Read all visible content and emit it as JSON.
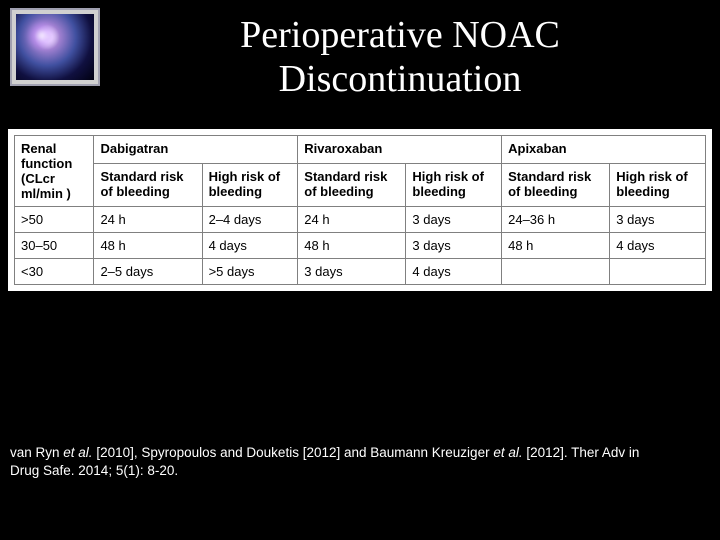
{
  "title_line1": "Perioperative NOAC",
  "title_line2": "Discontinuation",
  "table": {
    "col_renal_l1": "Renal function",
    "col_renal_l2": "(CLcr ml/min )",
    "drugs": [
      "Dabigatran",
      "Rivaroxaban",
      "Apixaban"
    ],
    "sub_std": "Standard risk of bleeding",
    "sub_high": "High risk of bleeding",
    "rows": [
      {
        "renal": ">50",
        "cells": [
          "24 h",
          "2–4 days",
          "24 h",
          "3 days",
          "24–36 h",
          "3 days"
        ]
      },
      {
        "renal": "30–50",
        "cells": [
          "48 h",
          "4 days",
          "48 h",
          "3 days",
          "48 h",
          "4 days"
        ]
      },
      {
        "renal": "<30",
        "cells": [
          "2–5 days",
          ">5 days",
          "3 days",
          "4 days",
          "",
          ""
        ]
      }
    ]
  },
  "citation": {
    "p1a": "van Ryn ",
    "p1b": "et al.",
    "p1c": " [2010], Spyropoulos and Douketis [2012] and Baumann Kreuziger ",
    "p1d": "et al.",
    "p1e": " [2012]. Ther Adv in",
    "p2": "Drug Safe. 2014; 5(1): 8-20."
  }
}
